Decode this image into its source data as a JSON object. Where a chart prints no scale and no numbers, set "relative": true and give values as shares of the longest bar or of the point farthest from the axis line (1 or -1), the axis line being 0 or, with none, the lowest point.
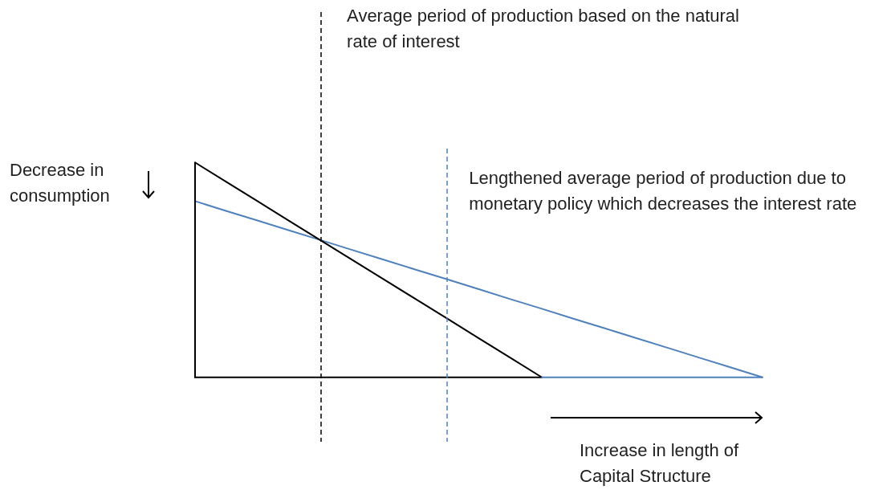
{
  "chart_data": {
    "type": "line",
    "relative": true,
    "legend": false,
    "tick_labels": false,
    "categories": [
      null,
      null,
      null,
      null,
      null,
      null,
      null,
      null,
      null,
      null,
      null,
      null,
      null,
      null,
      null,
      null,
      null,
      null,
      null
    ],
    "series": [
      {
        "color": "#000000",
        "values": [
          1,
          0.909,
          0.818,
          0.727,
          0.636,
          0.545,
          0.455,
          0.364,
          0.273,
          0.182,
          0.091,
          0,
          null,
          null,
          null,
          null,
          null,
          null,
          null
        ]
      },
      {
        "color": "#4f81bd",
        "values": [
          0.82,
          0.774,
          0.729,
          0.683,
          0.638,
          0.592,
          0.547,
          0.501,
          0.456,
          0.41,
          0.364,
          0.319,
          0.273,
          0.228,
          0.182,
          0.137,
          0.091,
          0.046,
          0
        ]
      }
    ],
    "annotations": [
      "Average period of production based on the natural rate of interest",
      "Decrease in consumption",
      "Lengthened average period of production due to monetary policy which decreases the interest rate",
      "Increase in length of Capital Structure"
    ]
  }
}
